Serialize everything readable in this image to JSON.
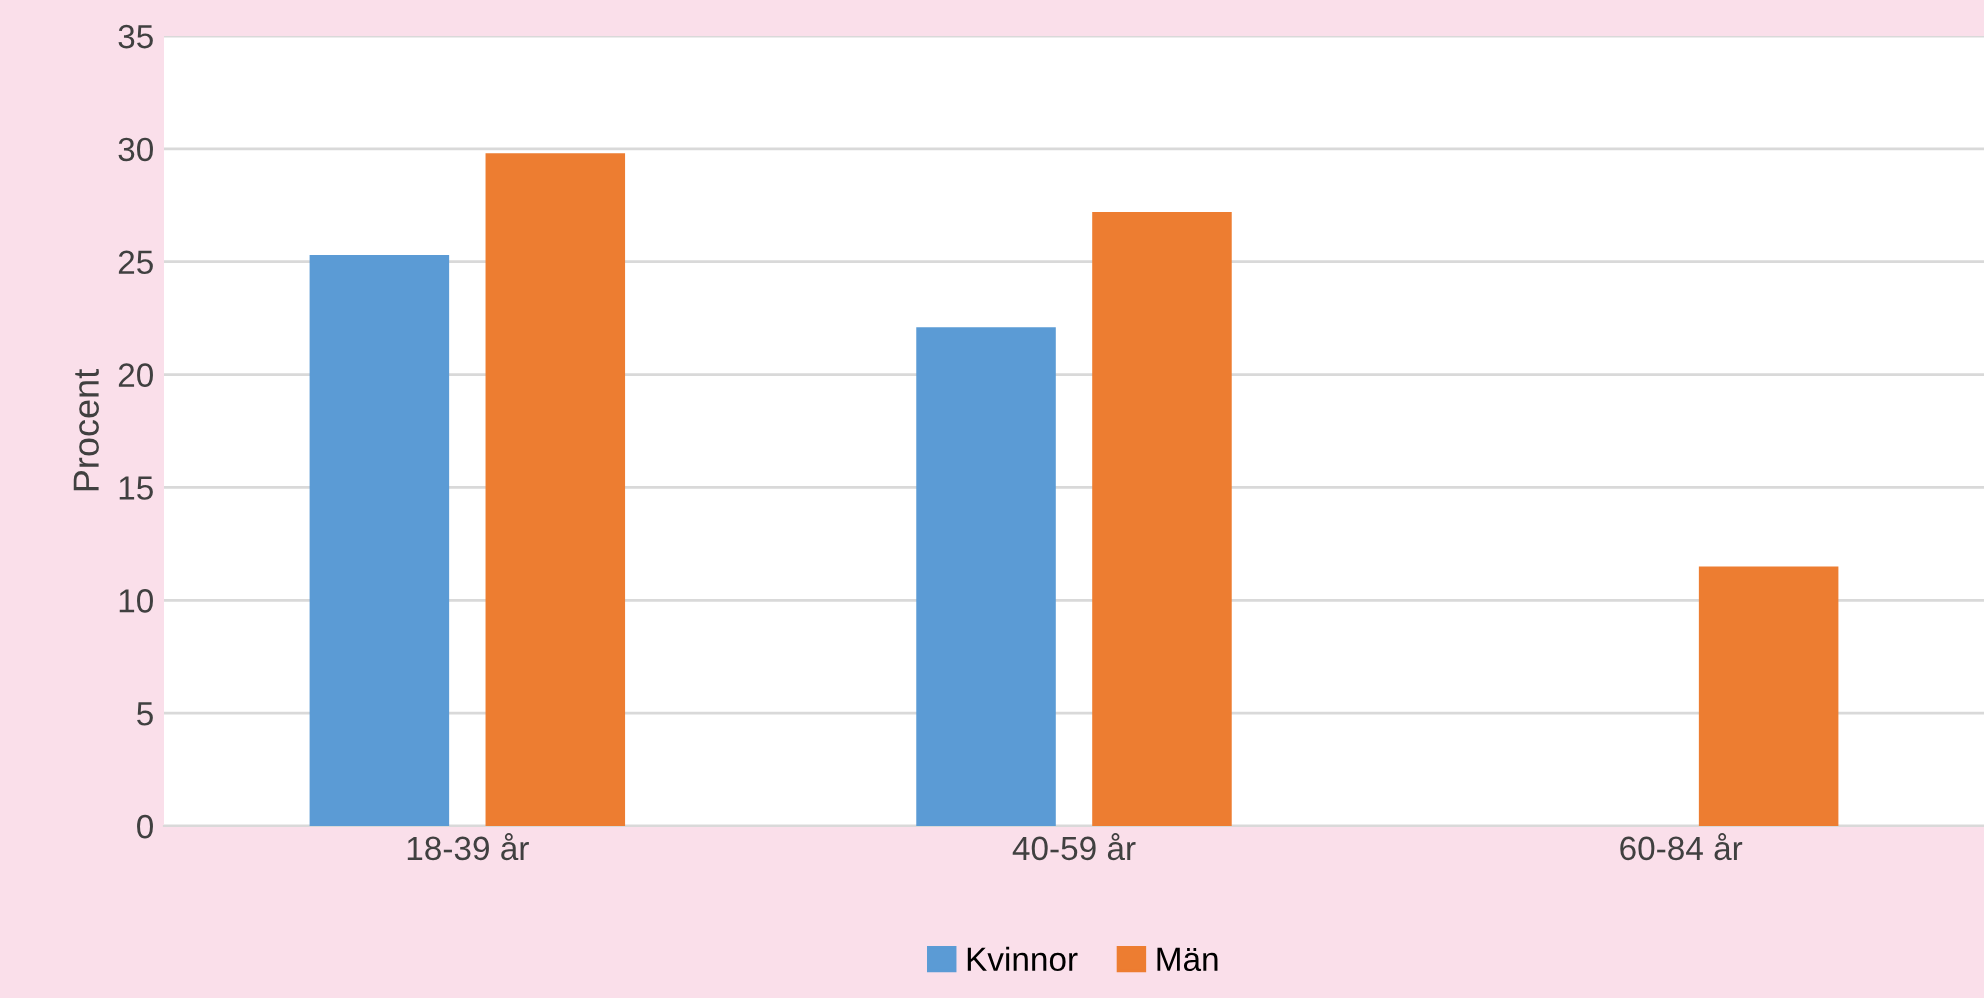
{
  "chart_data": {
    "type": "bar",
    "ylabel": "Procent",
    "categories": [
      "18-39 år",
      "40-59 år",
      "60-84 år"
    ],
    "series": [
      {
        "name": "Kvinnor",
        "color": "#5b9bd5",
        "values": [
          25.3,
          22.1,
          null
        ]
      },
      {
        "name": "Män",
        "color": "#ed7d31",
        "values": [
          29.8,
          27.2,
          11.5
        ]
      }
    ],
    "ylim": [
      0,
      35
    ],
    "yticks": [
      0,
      5,
      10,
      15,
      20,
      25,
      30,
      35
    ],
    "grid": "y",
    "legend": "bottom"
  }
}
